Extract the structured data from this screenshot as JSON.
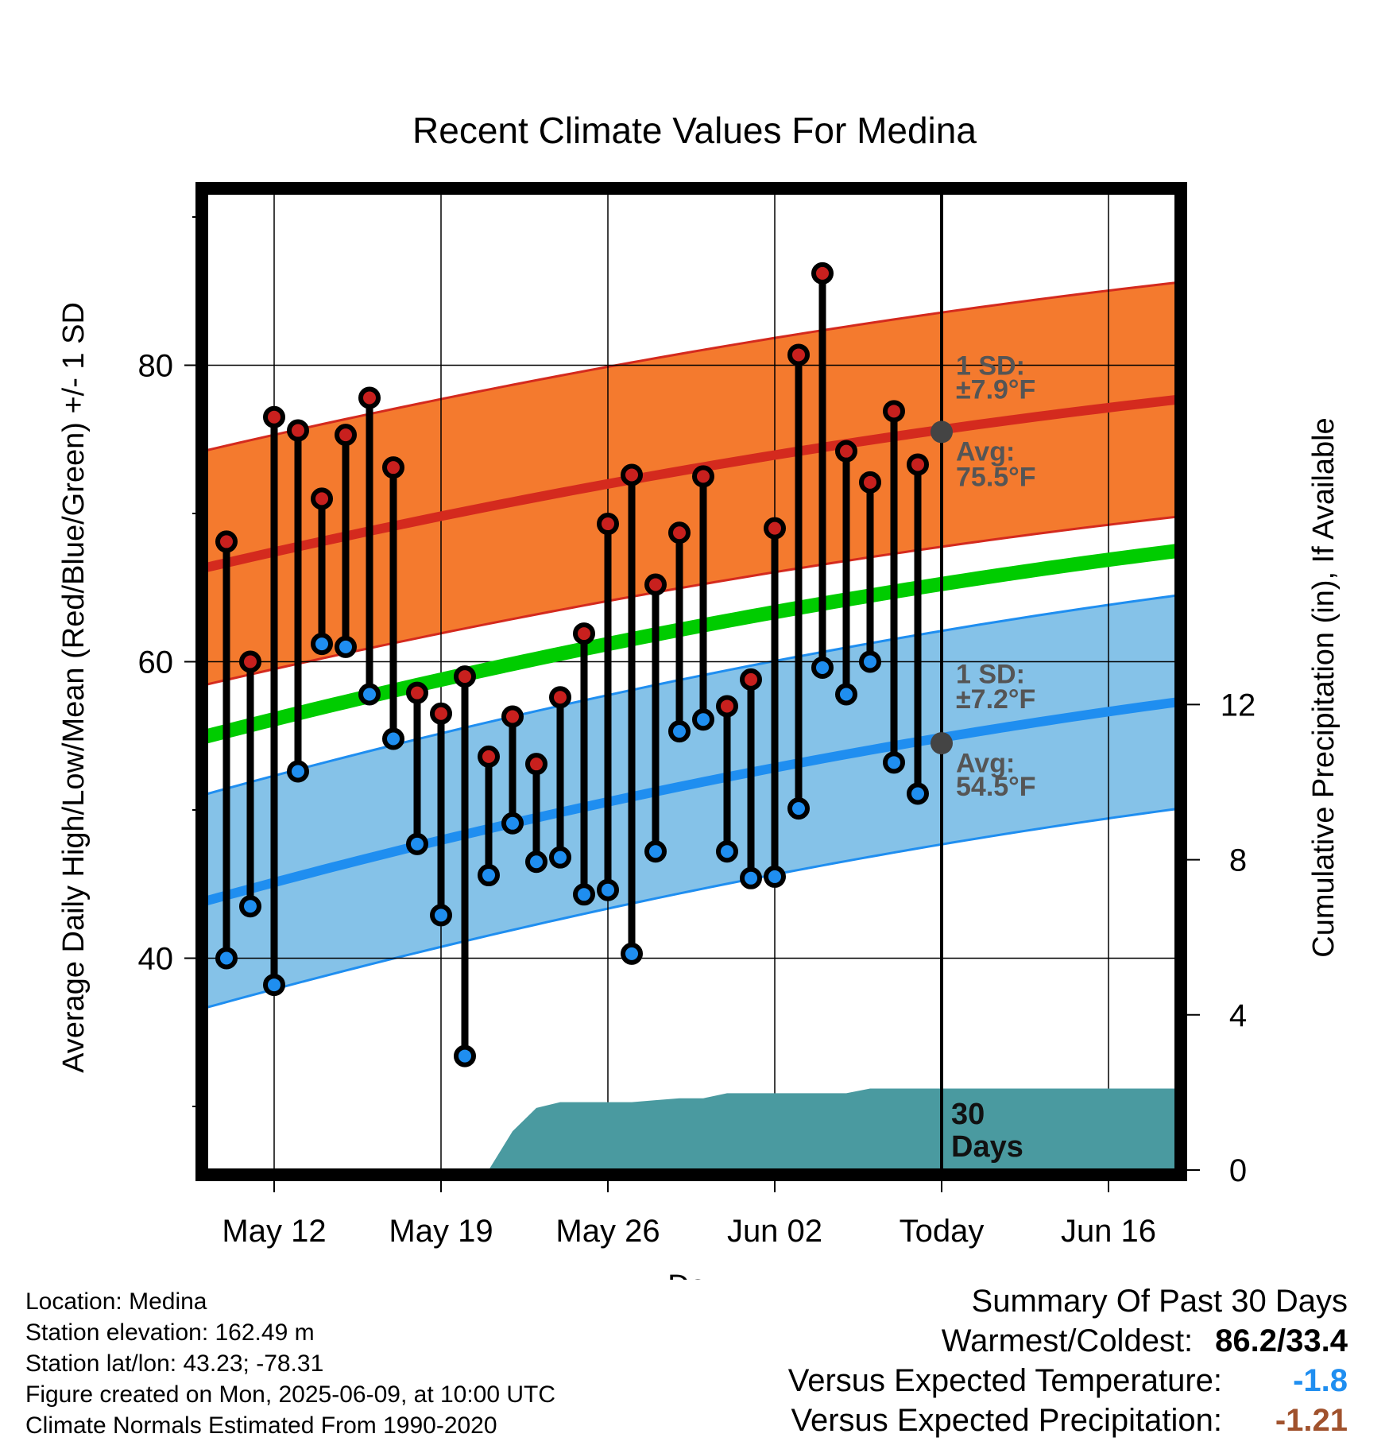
{
  "chart_data": {
    "type": "line",
    "title": "Recent Climate Values For Medina",
    "xlabel": "Day",
    "ylabel": "Average Daily High/Low/Mean (Red/Blue/Green) +/- 1 SD",
    "y2label": "Cumulative Precipitation (in), If Available",
    "ylim": [
      25,
      90
    ],
    "y2lim": [
      -0.3,
      24.8
    ],
    "y_ticks": [
      "40",
      "60",
      "80"
    ],
    "y2_ticks": [
      "0",
      "4",
      "8",
      "12"
    ],
    "x_ticks": [
      "May 12",
      "May 19",
      "May 26",
      "Jun 02",
      "Today",
      "Jun 16"
    ],
    "dates": [
      "May 10",
      "May 11",
      "May 12",
      "May 13",
      "May 14",
      "May 15",
      "May 16",
      "May 17",
      "May 18",
      "May 19",
      "May 20",
      "May 21",
      "May 22",
      "May 23",
      "May 24",
      "May 25",
      "May 26",
      "May 27",
      "May 28",
      "May 29",
      "May 30",
      "May 31",
      "Jun 01",
      "Jun 02",
      "Jun 03",
      "Jun 04",
      "Jun 05",
      "Jun 06",
      "Jun 07",
      "Jun 08"
    ],
    "series": [
      {
        "name": "High",
        "values": [
          68.1,
          60.0,
          76.5,
          75.6,
          71.0,
          75.3,
          77.8,
          73.1,
          57.9,
          56.5,
          59.0,
          53.6,
          56.3,
          53.1,
          57.6,
          61.9,
          69.3,
          72.6,
          65.2,
          68.7,
          72.5,
          57.0,
          58.8,
          69.0,
          80.7,
          86.2,
          74.2,
          72.1,
          76.9,
          73.3
        ]
      },
      {
        "name": "Low",
        "values": [
          40.0,
          43.5,
          38.2,
          52.6,
          61.2,
          61.0,
          57.8,
          54.8,
          47.7,
          42.9,
          33.4,
          45.6,
          49.1,
          46.5,
          46.8,
          44.3,
          44.6,
          40.3,
          47.2,
          55.3,
          56.1,
          47.2,
          45.4,
          45.5,
          50.1,
          59.6,
          57.8,
          60.0,
          53.2,
          51.1
        ]
      }
    ],
    "normals": {
      "x_range": [
        "May 09",
        "Jun 19"
      ],
      "mean_high": [
        66.3,
        77.7
      ],
      "mean_low": [
        43.8,
        57.3
      ],
      "mean": [
        54.9,
        67.5
      ]
    },
    "today": {
      "label": "Today",
      "high_sd_line1": "1 SD:",
      "high_sd_line2": "±7.9°F",
      "high_avg_line1": "Avg:",
      "high_avg_line2": "75.5°F",
      "low_sd_line1": "1 SD:",
      "low_sd_line2": "±7.2°F",
      "low_avg_line1": "Avg:",
      "low_avg_line2": "54.5°F",
      "high_avg": 75.5,
      "high_sd": 7.9,
      "low_avg": 54.5,
      "low_sd": 7.2
    },
    "precip": {
      "label_line1": "30",
      "label_line2": "Days",
      "days_offset": [
        11,
        12,
        13,
        14,
        15,
        16,
        17,
        18,
        19,
        20,
        21,
        22,
        23,
        24,
        25,
        26,
        27,
        28,
        29,
        30,
        31,
        32,
        33,
        34,
        35,
        36,
        37,
        38,
        39,
        40,
        41
      ],
      "cumulative": [
        0.0,
        0.0,
        1.0,
        1.6,
        1.75,
        1.75,
        1.75,
        1.75,
        1.8,
        1.85,
        1.85,
        1.98,
        1.98,
        1.98,
        1.98,
        1.98,
        1.98,
        2.1,
        2.1,
        2.1,
        2.1,
        2.1,
        2.1,
        2.1,
        2.1,
        2.1,
        2.1,
        2.1,
        2.1,
        2.1,
        2.1
      ],
      "cumulative_dates_note": ""
    },
    "colors": {
      "high_band": "#f47a2e",
      "high_line": "#d42a1e",
      "low_band": "#85c2e8",
      "low_line": "#1f8ef0",
      "mean_line": "#00cc00",
      "precip": "#4a9aa0",
      "high_dot": "#c8201e",
      "low_dot": "#1f8ef0",
      "avg_dot": "#444444"
    }
  },
  "info": {
    "location": "Location: Medina",
    "elevation": "Station elevation: 162.49 m",
    "latlon": "Station lat/lon: 43.23; -78.31",
    "created": "Figure created on Mon, 2025-06-09, at 10:00 UTC",
    "normals": "Climate Normals Estimated From 1990-2020"
  },
  "summary": {
    "heading": "Summary Of Past 30 Days",
    "warm_cold_label": "Warmest/Coldest:",
    "warm_cold_value": "86.2/33.4",
    "temp_label": "Versus Expected Temperature:",
    "temp_value": "-1.8",
    "temp_color": "#1f8ef0",
    "precip_label": "Versus Expected Precipitation:",
    "precip_value": "-1.21",
    "precip_color": "#a0522d"
  }
}
